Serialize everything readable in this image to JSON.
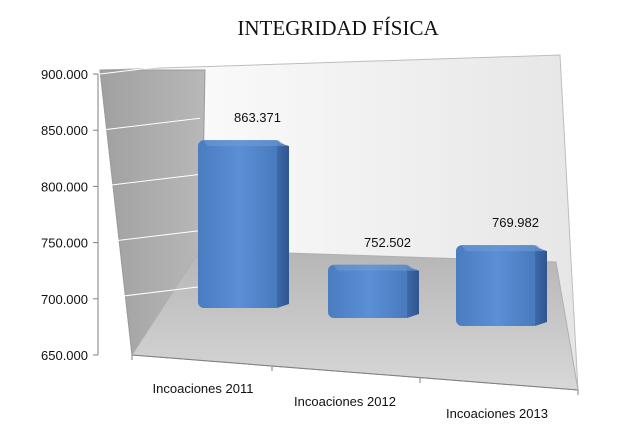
{
  "chart_data": {
    "type": "bar",
    "title": "INTEGRIDAD FÍSICA",
    "categories": [
      "Incoaciones 2011",
      "Incoaciones 2012",
      "Incoaciones 2013"
    ],
    "values": [
      863371,
      752502,
      769982
    ],
    "data_labels": [
      "863.371",
      "752.502",
      "769.982"
    ],
    "y_tick_values": [
      650000,
      700000,
      750000,
      800000,
      850000,
      900000
    ],
    "y_tick_labels": [
      "650.000",
      "700.000",
      "750.000",
      "800.000",
      "850.000",
      "900.000"
    ],
    "ylim": [
      650000,
      900000
    ],
    "xlabel": "",
    "ylabel": "",
    "grid": true,
    "legend": "none",
    "style": "3d-column",
    "colors": {
      "bar_front": "#4f81bd",
      "bar_side": "#3b6597",
      "bar_top": "#6f9bd4",
      "left_wall": "#a6a6a6",
      "back_wall": "#f4f4f4",
      "floor": "#c8c8c8"
    }
  }
}
